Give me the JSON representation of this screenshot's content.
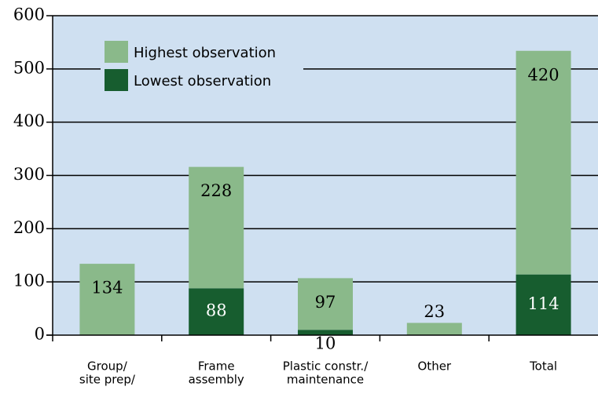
{
  "chart_data": {
    "type": "stacked_bar",
    "categories": [
      [
        "Group/",
        "site prep/"
      ],
      [
        "Frame",
        "assembly"
      ],
      [
        "Plastic constr./",
        "maintenance"
      ],
      [
        "Other"
      ],
      [
        "Total"
      ]
    ],
    "series": [
      {
        "name": "Lowest observation",
        "color": "#175d2f",
        "values": [
          null,
          88,
          10,
          null,
          114
        ]
      },
      {
        "name": "Highest observation",
        "color": "#8ab98a",
        "values": [
          134,
          228,
          97,
          23,
          420
        ]
      }
    ],
    "ylim": [
      0,
      600
    ],
    "yticks": [
      0,
      100,
      200,
      300,
      400,
      500,
      600
    ],
    "grid": true,
    "legend": "upper left",
    "background": "#cfe0f1"
  }
}
